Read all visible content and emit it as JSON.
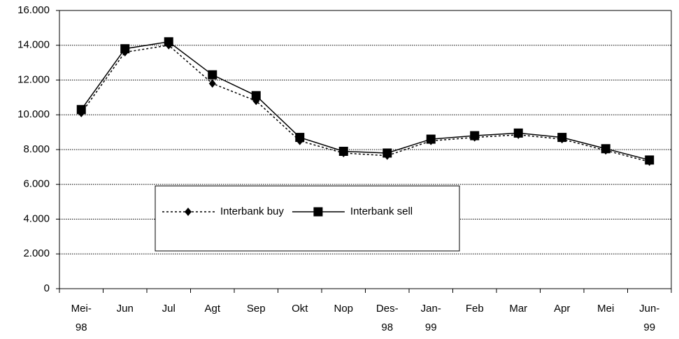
{
  "chart_data": {
    "type": "line",
    "categories": [
      [
        "Mei-",
        "98"
      ],
      [
        "Jun"
      ],
      [
        "Jul"
      ],
      [
        "Agt"
      ],
      [
        "Sep"
      ],
      [
        "Okt"
      ],
      [
        "Nop"
      ],
      [
        "Des-",
        "98"
      ],
      [
        "Jan-",
        "99"
      ],
      [
        "Feb"
      ],
      [
        "Mar"
      ],
      [
        "Apr"
      ],
      [
        "Mei"
      ],
      [
        "Jun-",
        "99"
      ]
    ],
    "series": [
      {
        "name": "Interbank buy",
        "color": "#000000",
        "dash": "dotted",
        "marker": "diamond",
        "values": [
          10100,
          13600,
          14000,
          11800,
          10800,
          8500,
          7800,
          7650,
          8500,
          8700,
          8850,
          8600,
          7950,
          7300
        ]
      },
      {
        "name": "Interbank sell",
        "color": "#000000",
        "dash": "solid",
        "marker": "square",
        "values": [
          10300,
          13800,
          14200,
          12300,
          11100,
          8700,
          7900,
          7800,
          8600,
          8800,
          8950,
          8700,
          8050,
          7400
        ]
      }
    ],
    "ylim": [
      0,
      16000
    ],
    "yticks": [
      0,
      {
        "value": 2000,
        "label": "2.000"
      },
      {
        "value": 4000,
        "label": "4.000"
      },
      {
        "value": 6000,
        "label": "6.000"
      },
      {
        "value": 8000,
        "label": "8.000"
      },
      {
        "value": 10000,
        "label": "10.000"
      },
      {
        "value": 12000,
        "label": "12.000"
      },
      {
        "value": 14000,
        "label": "14.000"
      },
      {
        "value": 16000,
        "label": "16.000"
      }
    ],
    "grid": true
  }
}
